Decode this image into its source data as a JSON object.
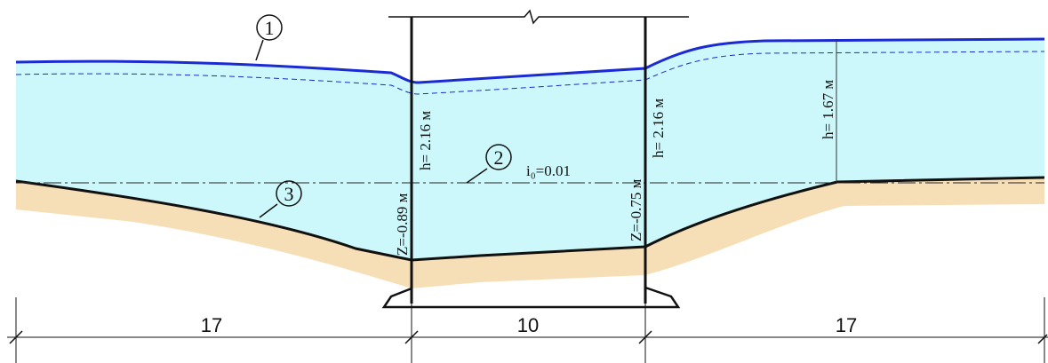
{
  "markers": {
    "m1": "1",
    "m2": "2",
    "m3": "3"
  },
  "slope_label": "i₀=0.01",
  "depth_labels": {
    "left_pier": "h= 2.16 м",
    "right_pier": "h= 2.16 м",
    "right_reach": "h= 1.67 м"
  },
  "scour_labels": {
    "left_pier": "Z=-0.89 м",
    "right_pier": "Z=-0.75 м"
  },
  "dimensions": {
    "left": "17",
    "middle": "10",
    "right": "17"
  },
  "colors": {
    "water_fill": "#ccf8fb",
    "water_line": "#1a2bd4",
    "sand": "#f6dfb6",
    "bed_line": "#111111"
  }
}
